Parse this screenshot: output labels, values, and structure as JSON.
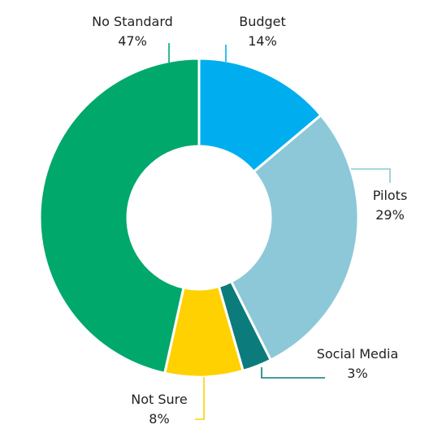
{
  "chart_data": {
    "type": "pie",
    "variant": "donut",
    "title": "",
    "categories": [
      "Budget",
      "Pilots",
      "Social Media",
      "Not Sure",
      "No Standard"
    ],
    "values": [
      14,
      29,
      3,
      8,
      47
    ],
    "value_labels": [
      "14%",
      "29%",
      "3%",
      "8%",
      "47%"
    ],
    "colors": [
      "#00aeef",
      "#8dc8d8",
      "#0c7b7b",
      "#ffd100",
      "#00a86b"
    ],
    "legend": "none"
  }
}
